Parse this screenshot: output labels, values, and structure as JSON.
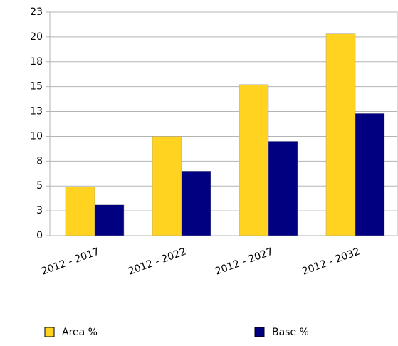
{
  "chart_data": {
    "type": "bar",
    "categories": [
      "2012 - 2017",
      "2012 - 2022",
      "2012 - 2027",
      "2012 - 2032"
    ],
    "series": [
      {
        "name": "Area %",
        "color": "#ffd320",
        "values": [
          4.9,
          10.0,
          15.2,
          20.3
        ]
      },
      {
        "name": "Base %",
        "color": "#000080",
        "values": [
          3.1,
          6.5,
          9.5,
          12.3
        ]
      }
    ],
    "ylim": [
      0,
      22.5
    ],
    "yticks": [
      0,
      {
        "value": 2.5,
        "label": "3"
      },
      5,
      {
        "value": 7.5,
        "label": "8"
      },
      10,
      {
        "value": 12.5,
        "label": "13"
      },
      15,
      {
        "value": 17.5,
        "label": "18"
      },
      20,
      {
        "value": 22.5,
        "label": "23"
      }
    ],
    "grid": true
  }
}
